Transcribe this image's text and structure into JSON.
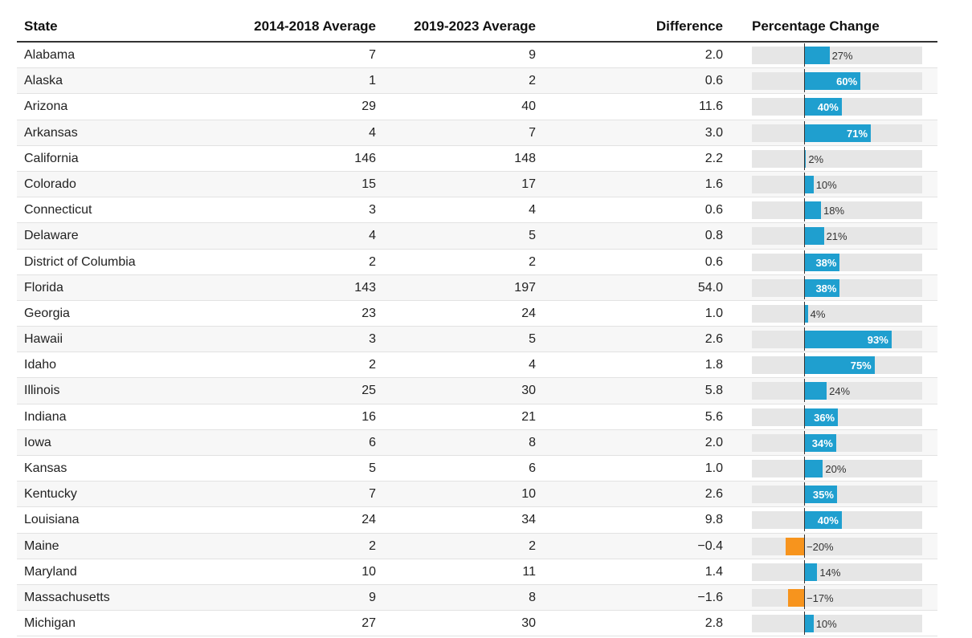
{
  "table": {
    "headers": {
      "state": "State",
      "avg_2014_2018": "2014-2018 Average",
      "avg_2019_2023": "2019-2023 Average",
      "difference": "Difference",
      "pct_change": "Percentage Change"
    }
  },
  "colors": {
    "positive": "#1f9fcf",
    "negative": "#f7941d",
    "track": "#e6e6e6"
  },
  "chart_data": {
    "type": "table",
    "columns": [
      "State",
      "2014-2018 Average",
      "2019-2023 Average",
      "Difference",
      "Percentage Change"
    ],
    "rows": [
      {
        "state": "Alabama",
        "a14": "7",
        "a19": "9",
        "diff": "2.0",
        "pct": 27,
        "pct_label": "27%"
      },
      {
        "state": "Alaska",
        "a14": "1",
        "a19": "2",
        "diff": "0.6",
        "pct": 60,
        "pct_label": "60%"
      },
      {
        "state": "Arizona",
        "a14": "29",
        "a19": "40",
        "diff": "11.6",
        "pct": 40,
        "pct_label": "40%"
      },
      {
        "state": "Arkansas",
        "a14": "4",
        "a19": "7",
        "diff": "3.0",
        "pct": 71,
        "pct_label": "71%"
      },
      {
        "state": "California",
        "a14": "146",
        "a19": "148",
        "diff": "2.2",
        "pct": 2,
        "pct_label": "2%"
      },
      {
        "state": "Colorado",
        "a14": "15",
        "a19": "17",
        "diff": "1.6",
        "pct": 10,
        "pct_label": "10%"
      },
      {
        "state": "Connecticut",
        "a14": "3",
        "a19": "4",
        "diff": "0.6",
        "pct": 18,
        "pct_label": "18%"
      },
      {
        "state": "Delaware",
        "a14": "4",
        "a19": "5",
        "diff": "0.8",
        "pct": 21,
        "pct_label": "21%"
      },
      {
        "state": "District of Columbia",
        "a14": "2",
        "a19": "2",
        "diff": "0.6",
        "pct": 38,
        "pct_label": "38%"
      },
      {
        "state": "Florida",
        "a14": "143",
        "a19": "197",
        "diff": "54.0",
        "pct": 38,
        "pct_label": "38%"
      },
      {
        "state": "Georgia",
        "a14": "23",
        "a19": "24",
        "diff": "1.0",
        "pct": 4,
        "pct_label": "4%"
      },
      {
        "state": "Hawaii",
        "a14": "3",
        "a19": "5",
        "diff": "2.6",
        "pct": 93,
        "pct_label": "93%"
      },
      {
        "state": "Idaho",
        "a14": "2",
        "a19": "4",
        "diff": "1.8",
        "pct": 75,
        "pct_label": "75%"
      },
      {
        "state": "Illinois",
        "a14": "25",
        "a19": "30",
        "diff": "5.8",
        "pct": 24,
        "pct_label": "24%"
      },
      {
        "state": "Indiana",
        "a14": "16",
        "a19": "21",
        "diff": "5.6",
        "pct": 36,
        "pct_label": "36%"
      },
      {
        "state": "Iowa",
        "a14": "6",
        "a19": "8",
        "diff": "2.0",
        "pct": 34,
        "pct_label": "34%"
      },
      {
        "state": "Kansas",
        "a14": "5",
        "a19": "6",
        "diff": "1.0",
        "pct": 20,
        "pct_label": "20%"
      },
      {
        "state": "Kentucky",
        "a14": "7",
        "a19": "10",
        "diff": "2.6",
        "pct": 35,
        "pct_label": "35%"
      },
      {
        "state": "Louisiana",
        "a14": "24",
        "a19": "34",
        "diff": "9.8",
        "pct": 40,
        "pct_label": "40%"
      },
      {
        "state": "Maine",
        "a14": "2",
        "a19": "2",
        "diff": "−0.4",
        "pct": -20,
        "pct_label": "−20%"
      },
      {
        "state": "Maryland",
        "a14": "10",
        "a19": "11",
        "diff": "1.4",
        "pct": 14,
        "pct_label": "14%"
      },
      {
        "state": "Massachusetts",
        "a14": "9",
        "a19": "8",
        "diff": "−1.6",
        "pct": -17,
        "pct_label": "−17%"
      },
      {
        "state": "Michigan",
        "a14": "27",
        "a19": "30",
        "diff": "2.8",
        "pct": 10,
        "pct_label": "10%"
      }
    ]
  }
}
